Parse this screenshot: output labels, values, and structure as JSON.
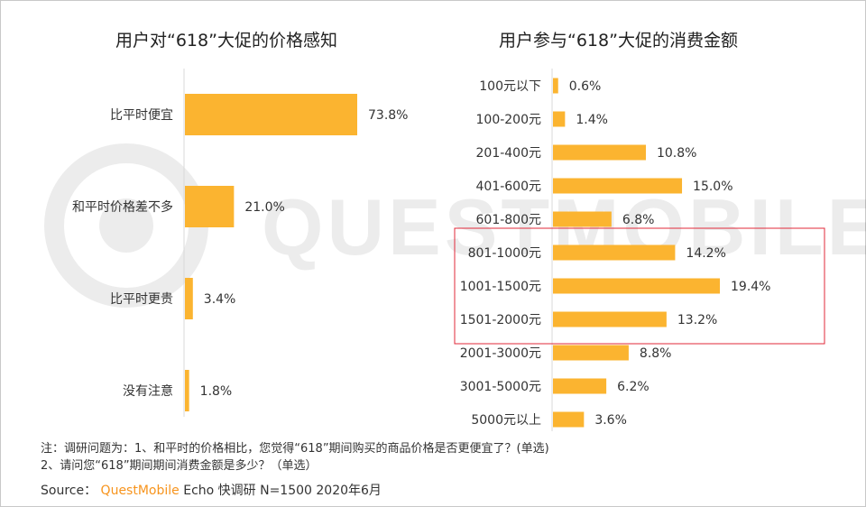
{
  "watermark": "QUESTMOBILE",
  "colors": {
    "bar": "#fbb430",
    "highlight_box": "#e0283a",
    "axis": "#d9d9d9",
    "brand": "#f7941d"
  },
  "chart_data": [
    {
      "type": "bar",
      "orientation": "horizontal",
      "title": "用户对“618”大促的价格感知",
      "categories": [
        "比平时便宜",
        "和平时价格差不多",
        "比平时更贵",
        "没有注意"
      ],
      "values": [
        73.8,
        21.0,
        3.4,
        1.8
      ],
      "labels": [
        "73.8%",
        "21.0%",
        "3.4%",
        "1.8%"
      ],
      "unit": "%"
    },
    {
      "type": "bar",
      "orientation": "horizontal",
      "title": "用户参与“618”大促的消费金额",
      "categories": [
        "100元以下",
        "100-200元",
        "201-400元",
        "401-600元",
        "601-800元",
        "801-1000元",
        "1001-1500元",
        "1501-2000元",
        "2001-3000元",
        "3001-5000元",
        "5000元以上"
      ],
      "values": [
        0.6,
        1.4,
        10.8,
        15.0,
        6.8,
        14.2,
        19.4,
        13.2,
        8.8,
        6.2,
        3.6
      ],
      "labels": [
        "0.6%",
        "1.4%",
        "10.8%",
        "15.0%",
        "6.8%",
        "14.2%",
        "19.4%",
        "13.2%",
        "8.8%",
        "6.2%",
        "3.6%"
      ],
      "unit": "%",
      "highlighted": [
        "801-1000元",
        "1001-1500元",
        "1501-2000元"
      ]
    }
  ],
  "notes": {
    "line1": "注：调研问题为：1、和平时的价格相比，您觉得“618”期间购买的商品价格是否更便宜了？(单选)",
    "line2": "2、请问您“618”期间期间消费金额是多少？（单选）"
  },
  "source": {
    "label": "Source：",
    "brand": "QuestMobile",
    "text": "Echo 快调研 N=1500 2020年6月"
  }
}
